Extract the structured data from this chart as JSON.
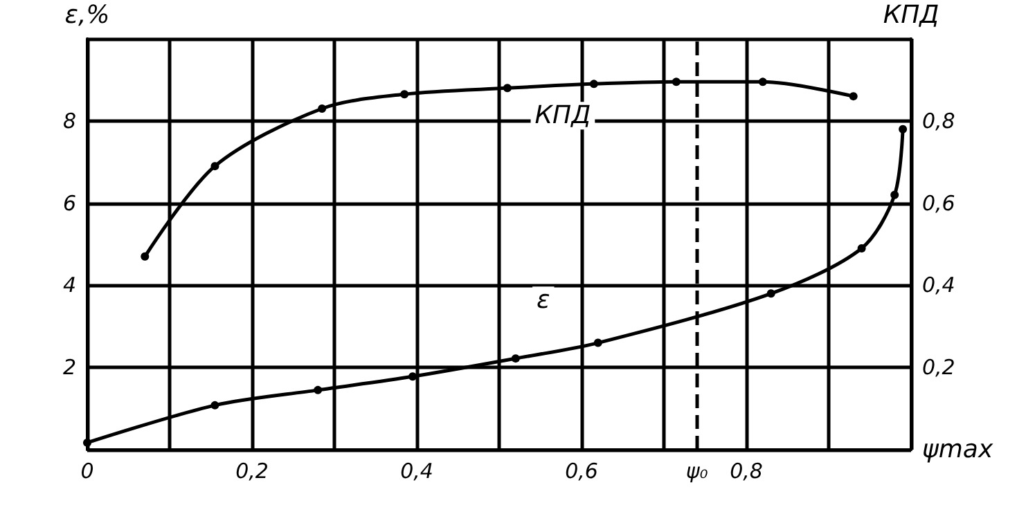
{
  "chart_data": {
    "type": "line",
    "xlabel": "ψmax",
    "ylabel": "ε,%",
    "y2label": "КПД",
    "series": [
      {
        "name": "КПД",
        "axis": "y2",
        "color": "#000000",
        "x": [
          0.07,
          0.155,
          0.285,
          0.385,
          0.51,
          0.615,
          0.715,
          0.82,
          0.93
        ],
        "values": [
          0.47,
          0.69,
          0.83,
          0.865,
          0.88,
          0.89,
          0.895,
          0.895,
          0.86
        ]
      },
      {
        "name": "ε",
        "color": "#000000",
        "x": [
          0,
          0.155,
          0.28,
          0.395,
          0.52,
          0.62,
          0.83,
          0.94,
          0.98,
          0.99
        ],
        "values": [
          0.17,
          1.08,
          1.45,
          1.78,
          2.22,
          2.6,
          3.8,
          4.9,
          6.2,
          7.8
        ]
      }
    ],
    "xlim": [
      0,
      1
    ],
    "xticks": [
      {
        "value": 0,
        "label": "0"
      },
      {
        "value": 0.1,
        "label": null
      },
      {
        "value": 0.2,
        "label": "0,2"
      },
      {
        "value": 0.3,
        "label": null
      },
      {
        "value": 0.4,
        "label": "0,4"
      },
      {
        "value": 0.5,
        "label": null
      },
      {
        "value": 0.6,
        "label": "0,6"
      },
      {
        "value": 0.7,
        "label": null
      },
      {
        "value": 0.8,
        "label": "0,8"
      },
      {
        "value": 0.9,
        "label": null
      },
      {
        "value": 1,
        "label": null
      }
    ],
    "ylim": [
      0,
      10
    ],
    "yticks": [
      {
        "value": 0,
        "label": null
      },
      2,
      4,
      6,
      8,
      {
        "value": 10,
        "label": null
      }
    ],
    "y2lim": [
      0,
      1
    ],
    "y2ticks": [
      {
        "value": 0,
        "label": null
      },
      {
        "value": 0.2,
        "label": "0,2"
      },
      {
        "value": 0.4,
        "label": "0,4"
      },
      {
        "value": 0.6,
        "label": "0,6"
      },
      {
        "value": 0.8,
        "label": "0,8"
      },
      {
        "value": 1,
        "label": null
      }
    ],
    "ref_lines": [
      {
        "axis": "x",
        "value": 0.743,
        "label": "ψ₀",
        "line_style": "dashed",
        "color": "#000000"
      }
    ],
    "grid": true,
    "legend": false,
    "marker": "circle",
    "line_style": "solid"
  }
}
